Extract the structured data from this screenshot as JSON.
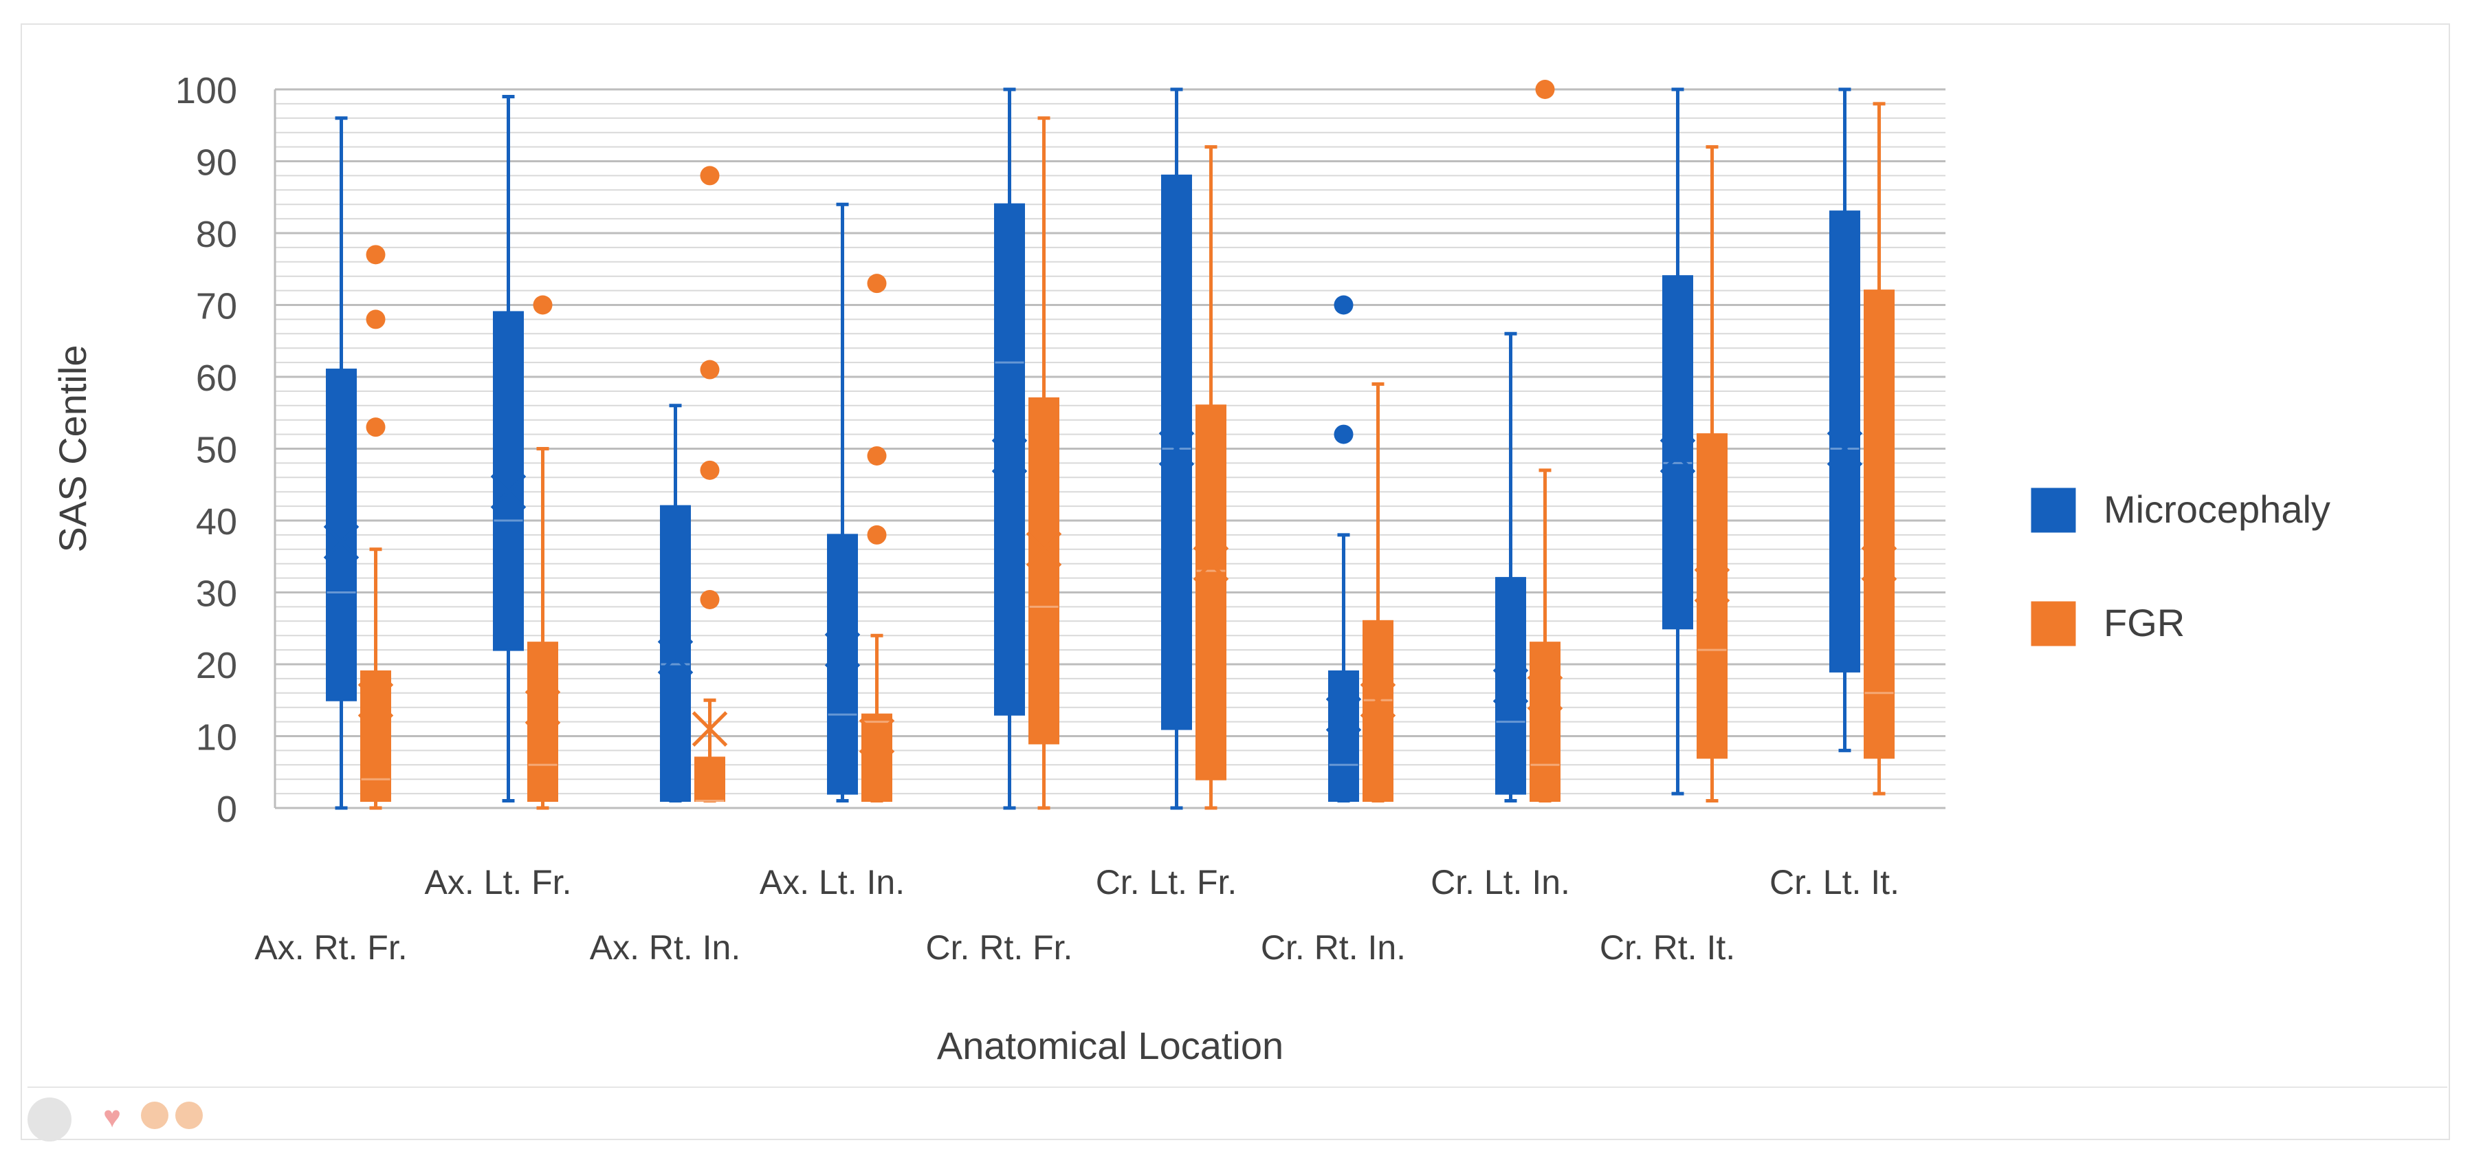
{
  "chart_data": {
    "type": "box",
    "title": "",
    "xlabel": "Anatomical Location",
    "ylabel": "SAS Centile",
    "ylim": [
      0,
      100
    ],
    "yticks": [
      0,
      10,
      20,
      30,
      40,
      50,
      60,
      70,
      80,
      90,
      100
    ],
    "minor_grid_step": 2,
    "legend_position": "right",
    "categories": [
      "Ax. Rt. Fr.",
      "Ax. Lt. Fr.",
      "Ax. Rt. In.",
      "Ax. Lt. In.",
      "Cr. Rt. Fr.",
      "Cr. Lt. Fr.",
      "Cr. Rt. In.",
      "Cr. Lt. In.",
      "Cr. Rt. It.",
      "Cr. Lt. It."
    ],
    "series": [
      {
        "name": "Microcephaly",
        "color": "#1560bd",
        "boxes": [
          {
            "min": 0,
            "q1": 15,
            "median": 30,
            "mean": 37,
            "q3": 61,
            "max": 96,
            "outliers": []
          },
          {
            "min": 1,
            "q1": 22,
            "median": 40,
            "mean": 44,
            "q3": 69,
            "max": 99,
            "outliers": []
          },
          {
            "min": 1,
            "q1": 1,
            "median": 20,
            "mean": 21,
            "q3": 42,
            "max": 56,
            "outliers": []
          },
          {
            "min": 1,
            "q1": 2,
            "median": 13,
            "mean": 22,
            "q3": 38,
            "max": 84,
            "outliers": []
          },
          {
            "min": 0,
            "q1": 13,
            "median": 62,
            "mean": 49,
            "q3": 84,
            "max": 100,
            "outliers": []
          },
          {
            "min": 0,
            "q1": 11,
            "median": 50,
            "mean": 50,
            "q3": 88,
            "max": 100,
            "outliers": []
          },
          {
            "min": 1,
            "q1": 1,
            "median": 6,
            "mean": 13,
            "q3": 19,
            "max": 38,
            "outliers": [
              52,
              70
            ]
          },
          {
            "min": 1,
            "q1": 2,
            "median": 12,
            "mean": 17,
            "q3": 32,
            "max": 66,
            "outliers": []
          },
          {
            "min": 2,
            "q1": 25,
            "median": 48,
            "mean": 49,
            "q3": 74,
            "max": 100,
            "outliers": []
          },
          {
            "min": 8,
            "q1": 19,
            "median": 50,
            "mean": 50,
            "q3": 83,
            "max": 100,
            "outliers": []
          }
        ]
      },
      {
        "name": "FGR",
        "color": "#f07a2b",
        "boxes": [
          {
            "min": 0,
            "q1": 1,
            "median": 4,
            "mean": 15,
            "q3": 19,
            "max": 36,
            "outliers": [
              53,
              68,
              77
            ]
          },
          {
            "min": 0,
            "q1": 1,
            "median": 6,
            "mean": 14,
            "q3": 23,
            "max": 50,
            "outliers": [
              70
            ]
          },
          {
            "min": 1,
            "q1": 1,
            "median": 1,
            "mean": 11,
            "q3": 7,
            "max": 15,
            "outliers": [
              29,
              47,
              61,
              88
            ]
          },
          {
            "min": 1,
            "q1": 1,
            "median": 12,
            "mean": 10,
            "q3": 13,
            "max": 24,
            "outliers": [
              38,
              49,
              73
            ]
          },
          {
            "min": 0,
            "q1": 9,
            "median": 28,
            "mean": 36,
            "q3": 57,
            "max": 96,
            "outliers": []
          },
          {
            "min": 0,
            "q1": 4,
            "median": 33,
            "mean": 34,
            "q3": 56,
            "max": 92,
            "outliers": []
          },
          {
            "min": 1,
            "q1": 1,
            "median": 15,
            "mean": 15,
            "q3": 26,
            "max": 59,
            "outliers": []
          },
          {
            "min": 1,
            "q1": 1,
            "median": 6,
            "mean": 16,
            "q3": 23,
            "max": 47,
            "outliers": [
              100
            ]
          },
          {
            "min": 1,
            "q1": 7,
            "median": 22,
            "mean": 31,
            "q3": 52,
            "max": 92,
            "outliers": []
          },
          {
            "min": 2,
            "q1": 7,
            "median": 16,
            "mean": 34,
            "q3": 72,
            "max": 98,
            "outliers": []
          }
        ]
      }
    ]
  }
}
